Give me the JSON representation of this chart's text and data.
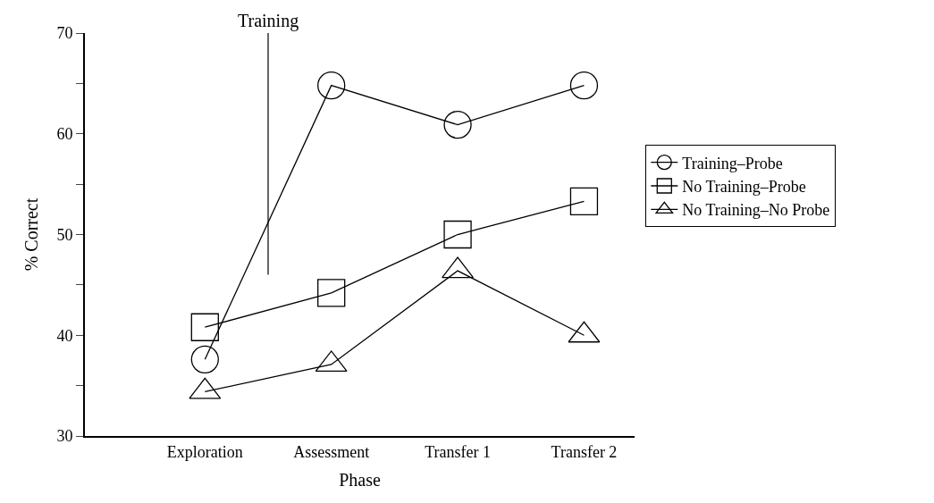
{
  "chart_data": {
    "type": "line",
    "xlabel": "Phase",
    "ylabel": "% Correct",
    "categories": [
      "Exploration",
      "Assessment",
      "Transfer 1",
      "Transfer 2"
    ],
    "series": [
      {
        "name": "Training–Probe",
        "color": "#000000",
        "marker": "circle",
        "values": [
          37.6,
          64.8,
          60.9,
          64.8
        ]
      },
      {
        "name": "No Training–Probe",
        "color": "#000000",
        "marker": "square",
        "values": [
          40.8,
          44.2,
          50.0,
          53.3
        ]
      },
      {
        "name": "No Training–No Probe",
        "color": "#000000",
        "marker": "triangle",
        "values": [
          34.4,
          37.1,
          46.4,
          40.0
        ]
      }
    ],
    "ylim": [
      30,
      70
    ],
    "yticks": [
      30,
      {
        "value": 35,
        "label": null
      },
      40,
      {
        "value": 45,
        "label": null
      },
      50,
      {
        "value": 55,
        "label": null
      },
      60,
      {
        "value": 65,
        "label": null
      },
      70
    ],
    "annotations": [
      "Training"
    ],
    "legend": "right",
    "line_style": "solid"
  }
}
